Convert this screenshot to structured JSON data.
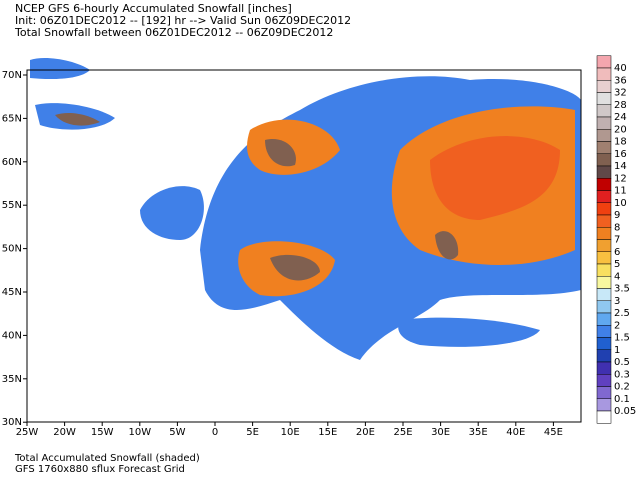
{
  "header": {
    "lines": [
      "NCEP GFS 6-hourly Accumulated Snowfall [inches]",
      "Init: 06Z01DEC2012 -- [192] hr --> Valid Sun 06Z09DEC2012",
      "Total Snowfall between 06Z01DEC2012 -- 06Z09DEC2012"
    ]
  },
  "map": {
    "lon_ticks": [
      "25W",
      "20W",
      "15W",
      "10W",
      "5W",
      "0",
      "5E",
      "10E",
      "15E",
      "20E",
      "25E",
      "30E",
      "35E",
      "40E",
      "45E"
    ],
    "lat_ticks": [
      "70N",
      "65N",
      "60N",
      "55N",
      "50N",
      "45N",
      "40N",
      "35N",
      "30N"
    ]
  },
  "colorbar": {
    "labels": [
      "40",
      "36",
      "32",
      "28",
      "24",
      "20",
      "18",
      "16",
      "14",
      "12",
      "11",
      "10",
      "9",
      "8",
      "7",
      "6",
      "5",
      "4",
      "3.5",
      "3",
      "2.5",
      "2",
      "1.5",
      "1",
      "0.5",
      "0.3",
      "0.2",
      "0.1",
      "0.05"
    ],
    "colors": [
      "#f4a6ae",
      "#f0bcbc",
      "#e8d0d0",
      "#e0e0e0",
      "#d0c8c8",
      "#c0b0b0",
      "#b09890",
      "#a08070",
      "#806050",
      "#604848",
      "#c00000",
      "#e02020",
      "#f04010",
      "#f06020",
      "#f08020",
      "#f0a030",
      "#f8c040",
      "#f8e060",
      "#f8f8a0",
      "#c8e8f8",
      "#90c8f0",
      "#60a8f0",
      "#4080e8",
      "#2060d0",
      "#2040b0",
      "#4030b0",
      "#6040c0",
      "#8068d0",
      "#a898e0",
      "#ffffff"
    ]
  },
  "footer": {
    "lines": [
      "Total Accumulated Snowfall (shaded)",
      "GFS 1760x880 sflux Forecast Grid"
    ]
  }
}
